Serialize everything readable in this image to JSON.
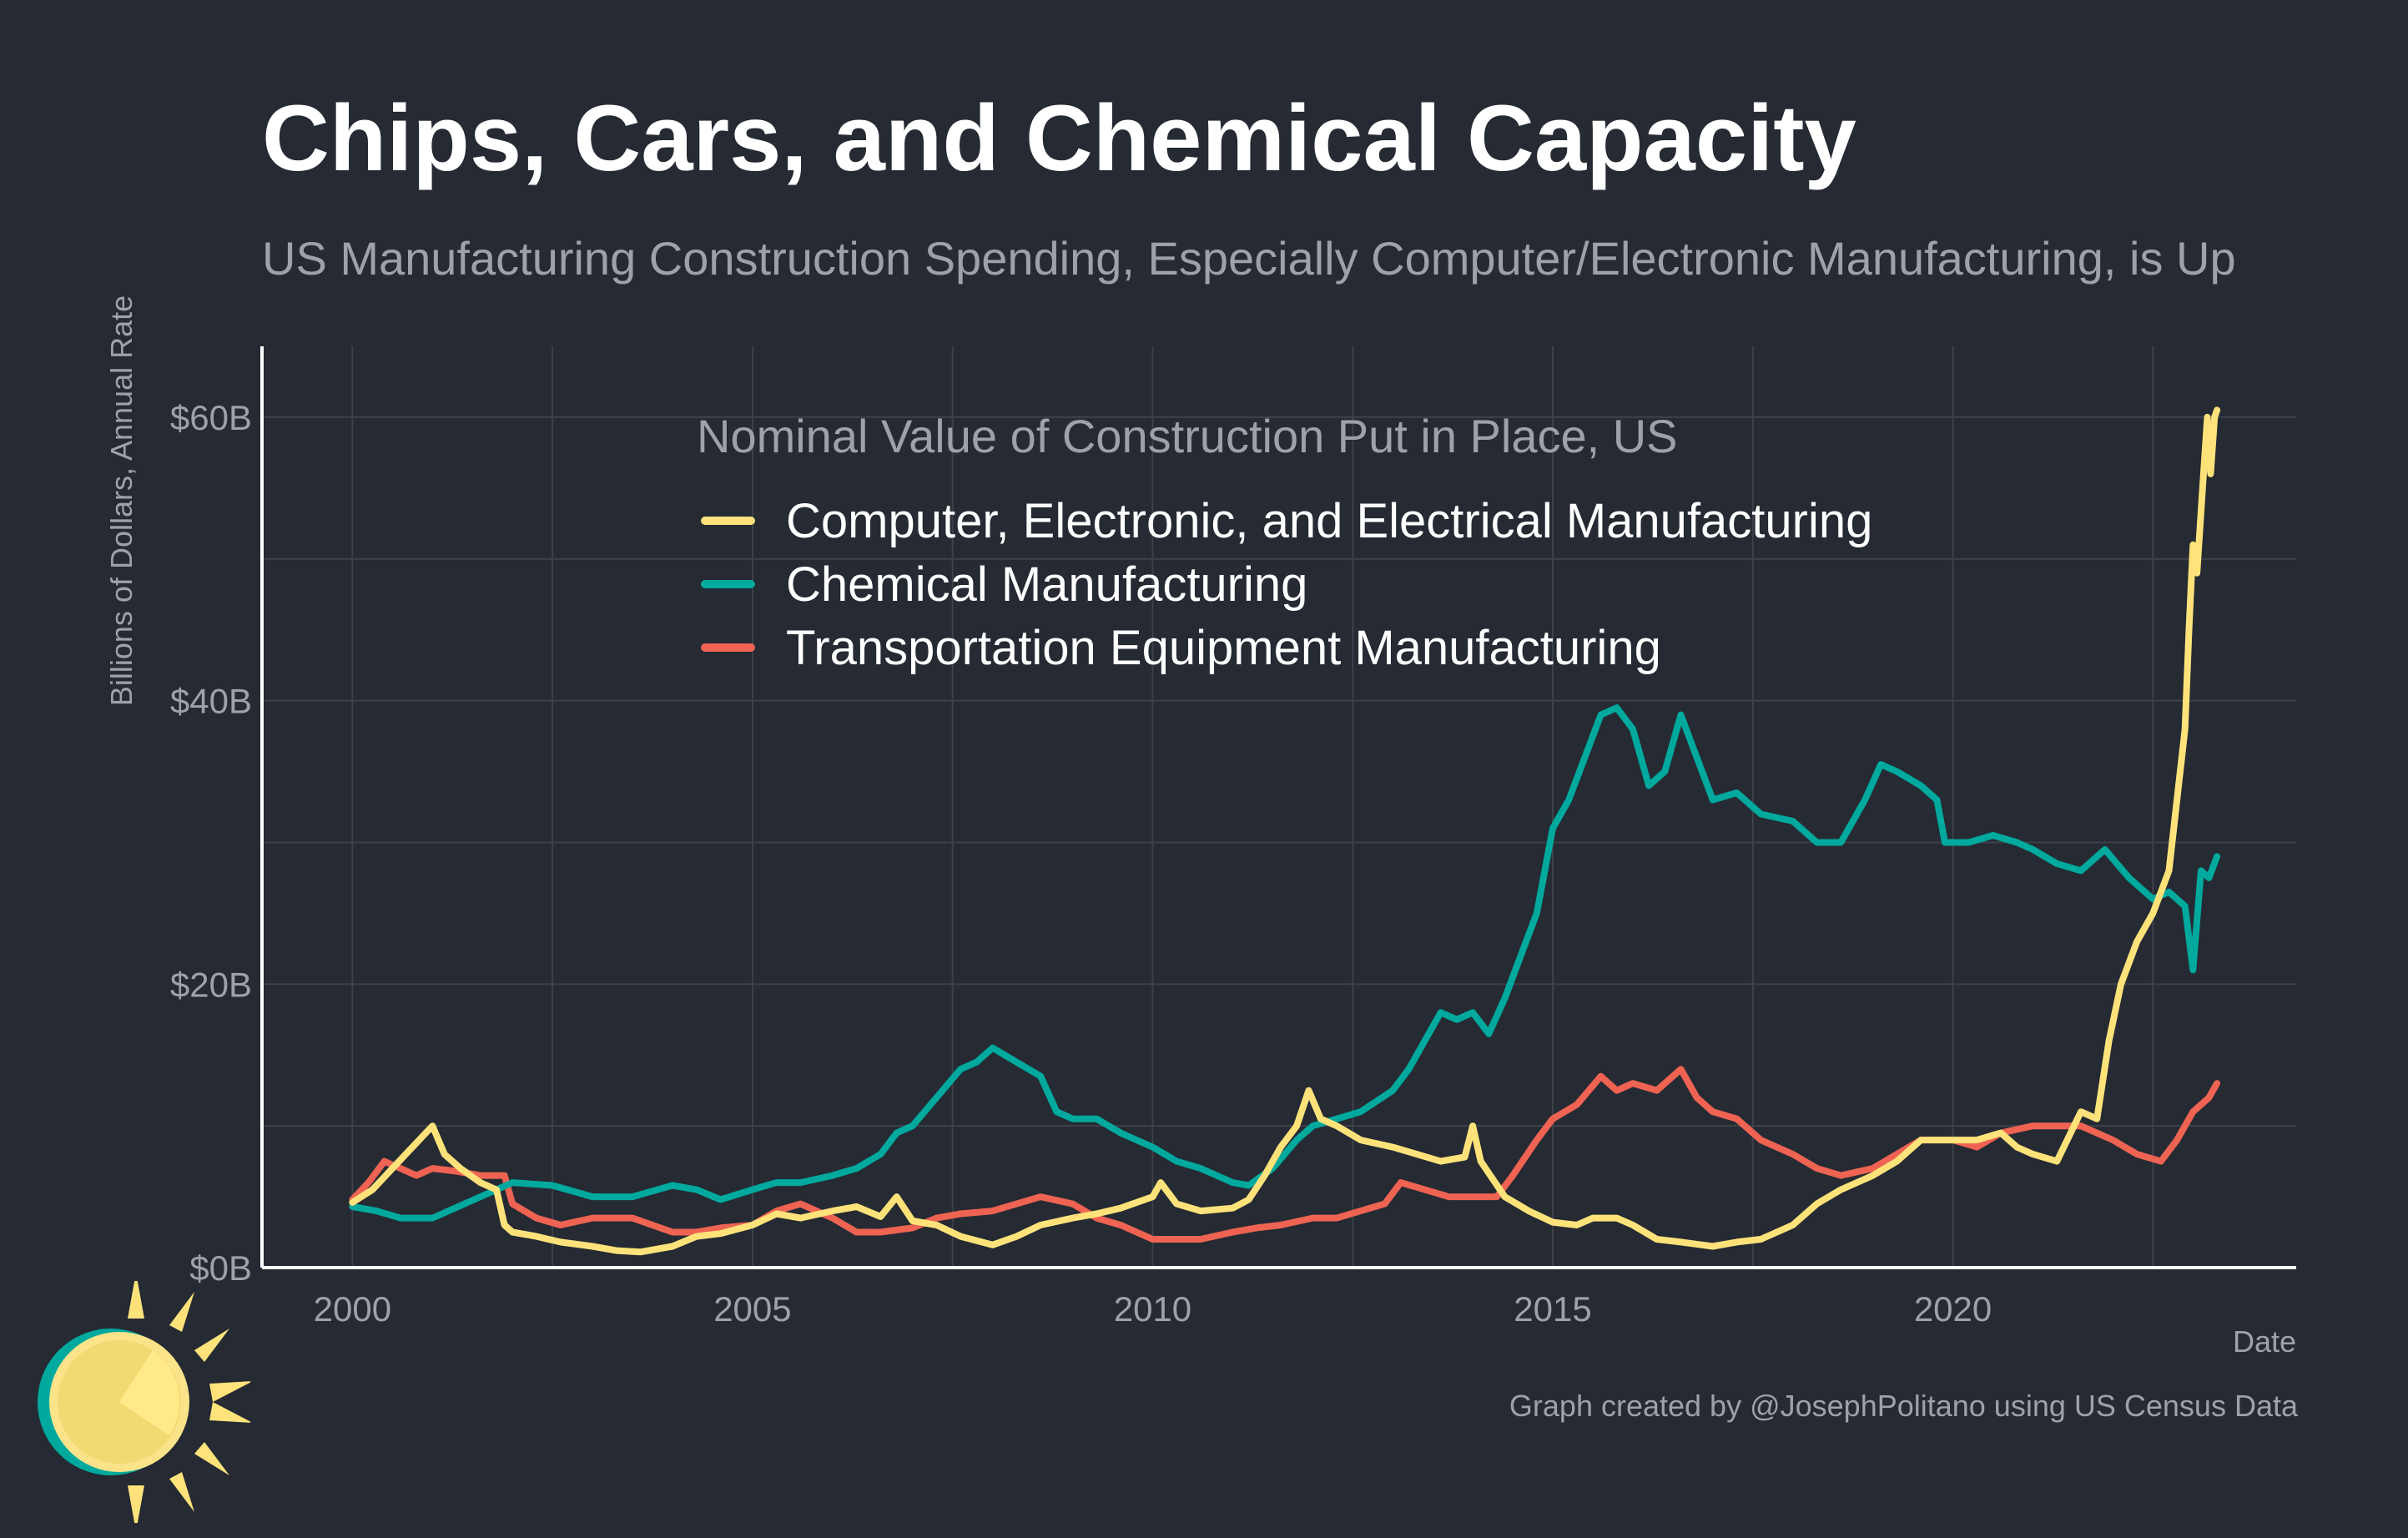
{
  "title": "Chips, Cars, and Chemical Capacity",
  "subtitle": "US Manufacturing Construction Spending, Especially Computer/Electronic Manufacturing, is Up",
  "caption": "Graph created by @JosephPolitano using US Census Data",
  "chart_data": {
    "type": "line",
    "xlabel": "Date",
    "ylabel": "Billions of Dollars, Annual Rate",
    "xlim": [
      1998.87,
      2024.29
    ],
    "ylim": [
      0,
      65
    ],
    "x_ticks": [
      2000,
      2005,
      2010,
      2015,
      2020
    ],
    "x_tick_labels": [
      "2000",
      "2005",
      "2010",
      "2015",
      "2020"
    ],
    "y_ticks": [
      0,
      20,
      40,
      60
    ],
    "y_tick_labels": [
      "$0B",
      "$20B",
      "$40B",
      "$60B"
    ],
    "grid": true,
    "legend": {
      "title": "Nominal Value of Construction Put in Place, US",
      "placement": "top-center, inside plot"
    },
    "series": [
      {
        "name": "Computer, Electronic, and Electrical Manufacturing",
        "color": "#ffe37a",
        "points": [
          [
            2000.0,
            4.6
          ],
          [
            2000.25,
            5.5
          ],
          [
            2000.5,
            7.0
          ],
          [
            2000.75,
            8.5
          ],
          [
            2001.0,
            10.0
          ],
          [
            2001.15,
            8.0
          ],
          [
            2001.35,
            7.0
          ],
          [
            2001.6,
            6.0
          ],
          [
            2001.8,
            5.5
          ],
          [
            2001.9,
            3.0
          ],
          [
            2002.0,
            2.5
          ],
          [
            2002.3,
            2.2
          ],
          [
            2002.6,
            1.8
          ],
          [
            2003.0,
            1.5
          ],
          [
            2003.3,
            1.2
          ],
          [
            2003.6,
            1.1
          ],
          [
            2004.0,
            1.5
          ],
          [
            2004.3,
            2.2
          ],
          [
            2004.6,
            2.4
          ],
          [
            2005.0,
            3.0
          ],
          [
            2005.3,
            3.8
          ],
          [
            2005.6,
            3.5
          ],
          [
            2006.0,
            4.0
          ],
          [
            2006.3,
            4.3
          ],
          [
            2006.6,
            3.6
          ],
          [
            2006.8,
            5.0
          ],
          [
            2007.0,
            3.3
          ],
          [
            2007.3,
            3.0
          ],
          [
            2007.6,
            2.2
          ],
          [
            2008.0,
            1.6
          ],
          [
            2008.3,
            2.2
          ],
          [
            2008.6,
            3.0
          ],
          [
            2009.0,
            3.5
          ],
          [
            2009.3,
            3.8
          ],
          [
            2009.6,
            4.2
          ],
          [
            2010.0,
            5.0
          ],
          [
            2010.1,
            6.0
          ],
          [
            2010.3,
            4.5
          ],
          [
            2010.6,
            4.0
          ],
          [
            2011.0,
            4.2
          ],
          [
            2011.2,
            4.8
          ],
          [
            2011.4,
            6.5
          ],
          [
            2011.6,
            8.5
          ],
          [
            2011.8,
            10.0
          ],
          [
            2011.95,
            12.5
          ],
          [
            2012.1,
            10.5
          ],
          [
            2012.3,
            10.0
          ],
          [
            2012.6,
            9.0
          ],
          [
            2013.0,
            8.5
          ],
          [
            2013.3,
            8.0
          ],
          [
            2013.6,
            7.5
          ],
          [
            2013.9,
            7.8
          ],
          [
            2014.0,
            10.0
          ],
          [
            2014.1,
            7.5
          ],
          [
            2014.4,
            5.0
          ],
          [
            2014.7,
            4.0
          ],
          [
            2015.0,
            3.2
          ],
          [
            2015.3,
            3.0
          ],
          [
            2015.5,
            3.5
          ],
          [
            2015.8,
            3.5
          ],
          [
            2016.0,
            3.0
          ],
          [
            2016.3,
            2.0
          ],
          [
            2016.6,
            1.8
          ],
          [
            2017.0,
            1.5
          ],
          [
            2017.3,
            1.8
          ],
          [
            2017.6,
            2.0
          ],
          [
            2018.0,
            3.0
          ],
          [
            2018.3,
            4.5
          ],
          [
            2018.6,
            5.5
          ],
          [
            2019.0,
            6.5
          ],
          [
            2019.3,
            7.5
          ],
          [
            2019.6,
            9.0
          ],
          [
            2020.0,
            9.0
          ],
          [
            2020.3,
            9.0
          ],
          [
            2020.6,
            9.5
          ],
          [
            2020.8,
            8.5
          ],
          [
            2021.0,
            8.0
          ],
          [
            2021.3,
            7.5
          ],
          [
            2021.6,
            11.0
          ],
          [
            2021.8,
            10.5
          ],
          [
            2021.95,
            16.0
          ],
          [
            2022.1,
            20.0
          ],
          [
            2022.3,
            23.0
          ],
          [
            2022.5,
            25.0
          ],
          [
            2022.7,
            28.0
          ],
          [
            2022.8,
            33.0
          ],
          [
            2022.9,
            38.0
          ],
          [
            2022.95,
            45.0
          ],
          [
            2023.0,
            51.0
          ],
          [
            2023.05,
            49.0
          ],
          [
            2023.12,
            55.0
          ],
          [
            2023.18,
            60.0
          ],
          [
            2023.22,
            56.0
          ],
          [
            2023.27,
            60.0
          ],
          [
            2023.3,
            60.5
          ]
        ]
      },
      {
        "name": "Chemical Manufacturing",
        "color": "#00a99d",
        "points": [
          [
            2000.0,
            4.3
          ],
          [
            2000.3,
            4.0
          ],
          [
            2000.6,
            3.5
          ],
          [
            2001.0,
            3.5
          ],
          [
            2001.4,
            4.5
          ],
          [
            2001.8,
            5.5
          ],
          [
            2002.0,
            6.0
          ],
          [
            2002.5,
            5.8
          ],
          [
            2003.0,
            5.0
          ],
          [
            2003.5,
            5.0
          ],
          [
            2004.0,
            5.8
          ],
          [
            2004.3,
            5.5
          ],
          [
            2004.6,
            4.8
          ],
          [
            2005.0,
            5.5
          ],
          [
            2005.3,
            6.0
          ],
          [
            2005.6,
            6.0
          ],
          [
            2006.0,
            6.5
          ],
          [
            2006.3,
            7.0
          ],
          [
            2006.6,
            8.0
          ],
          [
            2006.8,
            9.5
          ],
          [
            2007.0,
            10.0
          ],
          [
            2007.3,
            12.0
          ],
          [
            2007.6,
            14.0
          ],
          [
            2007.8,
            14.5
          ],
          [
            2008.0,
            15.5
          ],
          [
            2008.3,
            14.5
          ],
          [
            2008.6,
            13.5
          ],
          [
            2008.8,
            11.0
          ],
          [
            2009.0,
            10.5
          ],
          [
            2009.3,
            10.5
          ],
          [
            2009.6,
            9.5
          ],
          [
            2010.0,
            8.5
          ],
          [
            2010.3,
            7.5
          ],
          [
            2010.6,
            7.0
          ],
          [
            2011.0,
            6.0
          ],
          [
            2011.2,
            5.8
          ],
          [
            2011.5,
            7.0
          ],
          [
            2011.8,
            9.0
          ],
          [
            2012.0,
            10.0
          ],
          [
            2012.3,
            10.5
          ],
          [
            2012.6,
            11.0
          ],
          [
            2013.0,
            12.5
          ],
          [
            2013.2,
            14.0
          ],
          [
            2013.4,
            16.0
          ],
          [
            2013.6,
            18.0
          ],
          [
            2013.8,
            17.5
          ],
          [
            2014.0,
            18.0
          ],
          [
            2014.2,
            16.5
          ],
          [
            2014.4,
            19.0
          ],
          [
            2014.6,
            22.0
          ],
          [
            2014.8,
            25.0
          ],
          [
            2015.0,
            31.0
          ],
          [
            2015.2,
            33.0
          ],
          [
            2015.4,
            36.0
          ],
          [
            2015.6,
            39.0
          ],
          [
            2015.8,
            39.5
          ],
          [
            2016.0,
            38.0
          ],
          [
            2016.2,
            34.0
          ],
          [
            2016.4,
            35.0
          ],
          [
            2016.6,
            39.0
          ],
          [
            2016.8,
            36.0
          ],
          [
            2017.0,
            33.0
          ],
          [
            2017.3,
            33.5
          ],
          [
            2017.6,
            32.0
          ],
          [
            2018.0,
            31.5
          ],
          [
            2018.3,
            30.0
          ],
          [
            2018.6,
            30.0
          ],
          [
            2018.9,
            33.0
          ],
          [
            2019.1,
            35.5
          ],
          [
            2019.3,
            35.0
          ],
          [
            2019.6,
            34.0
          ],
          [
            2019.8,
            33.0
          ],
          [
            2019.9,
            30.0
          ],
          [
            2020.2,
            30.0
          ],
          [
            2020.5,
            30.5
          ],
          [
            2020.8,
            30.0
          ],
          [
            2021.0,
            29.5
          ],
          [
            2021.3,
            28.5
          ],
          [
            2021.6,
            28.0
          ],
          [
            2021.9,
            29.5
          ],
          [
            2022.2,
            27.5
          ],
          [
            2022.5,
            26.0
          ],
          [
            2022.7,
            26.5
          ],
          [
            2022.9,
            25.5
          ],
          [
            2023.0,
            21.0
          ],
          [
            2023.1,
            28.0
          ],
          [
            2023.2,
            27.5
          ],
          [
            2023.3,
            29.0
          ]
        ]
      },
      {
        "name": "Transportation Equipment Manufacturing",
        "color": "#ee6352",
        "points": [
          [
            2000.0,
            4.8
          ],
          [
            2000.2,
            6.0
          ],
          [
            2000.4,
            7.5
          ],
          [
            2000.6,
            7.0
          ],
          [
            2000.8,
            6.5
          ],
          [
            2001.0,
            7.0
          ],
          [
            2001.3,
            6.8
          ],
          [
            2001.6,
            6.5
          ],
          [
            2001.9,
            6.5
          ],
          [
            2002.0,
            4.5
          ],
          [
            2002.3,
            3.5
          ],
          [
            2002.6,
            3.0
          ],
          [
            2003.0,
            3.5
          ],
          [
            2003.5,
            3.5
          ],
          [
            2004.0,
            2.5
          ],
          [
            2004.3,
            2.5
          ],
          [
            2004.6,
            2.8
          ],
          [
            2005.0,
            3.0
          ],
          [
            2005.3,
            4.0
          ],
          [
            2005.6,
            4.5
          ],
          [
            2006.0,
            3.5
          ],
          [
            2006.3,
            2.5
          ],
          [
            2006.6,
            2.5
          ],
          [
            2007.0,
            2.8
          ],
          [
            2007.3,
            3.5
          ],
          [
            2007.6,
            3.8
          ],
          [
            2008.0,
            4.0
          ],
          [
            2008.3,
            4.5
          ],
          [
            2008.6,
            5.0
          ],
          [
            2009.0,
            4.5
          ],
          [
            2009.3,
            3.5
          ],
          [
            2009.6,
            3.0
          ],
          [
            2010.0,
            2.0
          ],
          [
            2010.3,
            2.0
          ],
          [
            2010.6,
            2.0
          ],
          [
            2011.0,
            2.5
          ],
          [
            2011.3,
            2.8
          ],
          [
            2011.6,
            3.0
          ],
          [
            2012.0,
            3.5
          ],
          [
            2012.3,
            3.5
          ],
          [
            2012.6,
            4.0
          ],
          [
            2012.9,
            4.5
          ],
          [
            2013.1,
            6.0
          ],
          [
            2013.4,
            5.5
          ],
          [
            2013.7,
            5.0
          ],
          [
            2014.0,
            5.0
          ],
          [
            2014.3,
            5.0
          ],
          [
            2014.5,
            6.5
          ],
          [
            2014.8,
            9.0
          ],
          [
            2015.0,
            10.5
          ],
          [
            2015.3,
            11.5
          ],
          [
            2015.6,
            13.5
          ],
          [
            2015.8,
            12.5
          ],
          [
            2016.0,
            13.0
          ],
          [
            2016.3,
            12.5
          ],
          [
            2016.6,
            14.0
          ],
          [
            2016.8,
            12.0
          ],
          [
            2017.0,
            11.0
          ],
          [
            2017.3,
            10.5
          ],
          [
            2017.6,
            9.0
          ],
          [
            2018.0,
            8.0
          ],
          [
            2018.3,
            7.0
          ],
          [
            2018.6,
            6.5
          ],
          [
            2019.0,
            7.0
          ],
          [
            2019.3,
            8.0
          ],
          [
            2019.6,
            9.0
          ],
          [
            2020.0,
            9.0
          ],
          [
            2020.3,
            8.5
          ],
          [
            2020.6,
            9.5
          ],
          [
            2021.0,
            10.0
          ],
          [
            2021.3,
            10.0
          ],
          [
            2021.6,
            10.0
          ],
          [
            2022.0,
            9.0
          ],
          [
            2022.3,
            8.0
          ],
          [
            2022.6,
            7.5
          ],
          [
            2022.8,
            9.0
          ],
          [
            2023.0,
            11.0
          ],
          [
            2023.2,
            12.0
          ],
          [
            2023.3,
            13.0
          ]
        ]
      }
    ]
  },
  "colors": {
    "background": "#252a33",
    "grid": "#3d424a",
    "axis": "#ffffff",
    "muted_text": "#9ea2a8",
    "logo_ring": "#00a99d",
    "logo_sun": "#ffe37a"
  }
}
